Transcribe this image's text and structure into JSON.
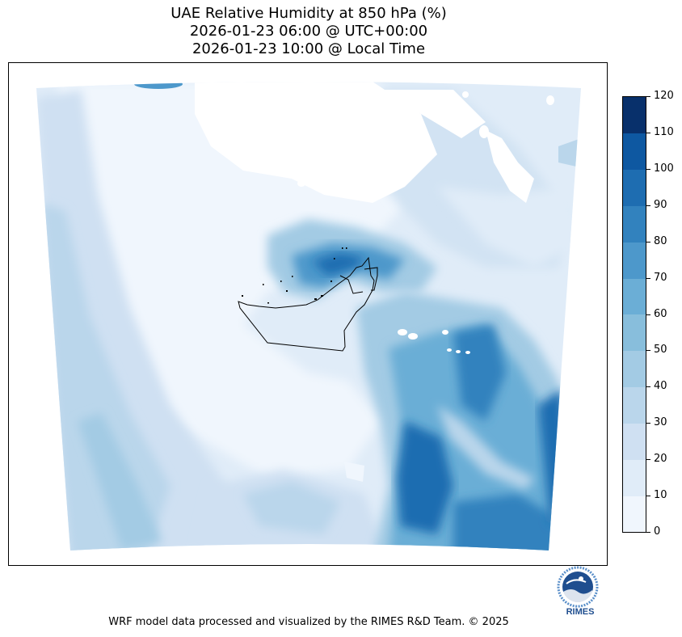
{
  "title": {
    "line1": "UAE Relative Humidity at 850 hPa (%)",
    "line2": "2026-01-23 06:00 @ UTC+00:00",
    "line3": "2026-01-23 10:00 @ Local Time"
  },
  "colorbar": {
    "ticks": [
      "0",
      "10",
      "20",
      "30",
      "40",
      "50",
      "60",
      "70",
      "80",
      "90",
      "100",
      "110",
      "120"
    ],
    "colors": [
      "#f0f6fd",
      "#e0ecf8",
      "#cfe0f2",
      "#bad6eb",
      "#a3cbe4",
      "#88bedc",
      "#6baed6",
      "#4d98cb",
      "#3282be",
      "#1e6db1",
      "#0e58a1",
      "#08306b"
    ],
    "label_values": [
      0,
      10,
      20,
      30,
      40,
      50,
      60,
      70,
      80,
      90,
      100,
      110,
      120
    ]
  },
  "logo": {
    "text": "RIMES",
    "ring_text": "Regional Integrated Multi-Hazard Early Warning System",
    "primary_color": "#1f4e8f"
  },
  "footer": {
    "text": "WRF model data processed and visualized by the RIMES R&D Team. © 2025"
  }
}
